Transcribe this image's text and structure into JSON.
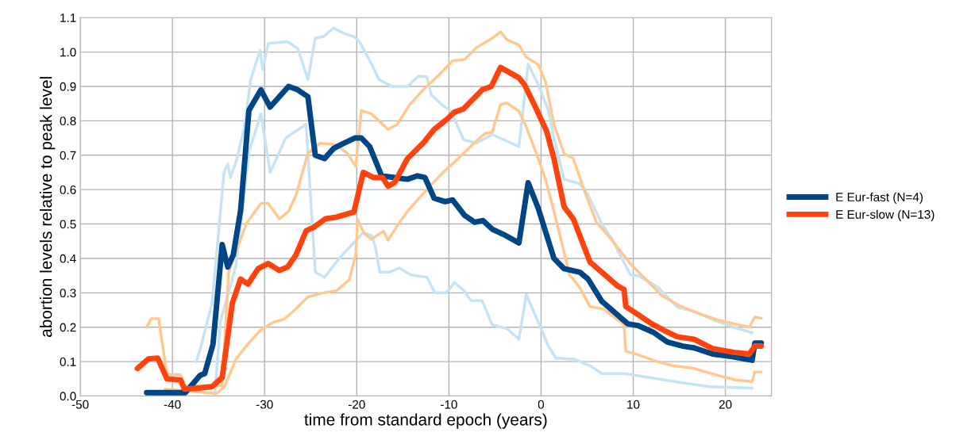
{
  "chart_data": {
    "type": "line",
    "xlabel": "time from standard epoch (years)",
    "ylabel": "abortion levels relative to peak level",
    "xlim": [
      -50,
      25
    ],
    "xticks": [
      -50,
      -40,
      -30,
      -20,
      -10,
      0,
      10,
      20
    ],
    "ylim": [
      0,
      1.1
    ],
    "yticks": [
      {
        "value": 0,
        "label": "0.0"
      },
      {
        "value": 0.1,
        "label": "0.1"
      },
      {
        "value": 0.2,
        "label": "0.2"
      },
      {
        "value": 0.3,
        "label": "0.3"
      },
      {
        "value": 0.4,
        "label": "0.4"
      },
      {
        "value": 0.5,
        "label": "0.5"
      },
      {
        "value": 0.6,
        "label": "0.6"
      },
      {
        "value": 0.7,
        "label": "0.7"
      },
      {
        "value": 0.8,
        "label": "0.8"
      },
      {
        "value": 0.9,
        "label": "0.9"
      },
      {
        "value": 1.0,
        "label": "1.0"
      },
      {
        "value": 1.1,
        "label": "1.1"
      }
    ],
    "grid": true,
    "legend": "right",
    "marker": "none",
    "line_style": "solid",
    "series": [
      {
        "color": "#c5e3f5",
        "x": [
          -37.4,
          -36.9,
          -35.7,
          -34.4,
          -34.0,
          -33.7,
          -33.0,
          -32.2,
          -31.5,
          -30.5,
          -30.2,
          -29.6,
          -27.5,
          -26.4,
          -25.3,
          -24.5,
          -23.6,
          -22.5,
          -21.5,
          -20.3,
          -19.7,
          -18.4,
          -17.6,
          -16.2,
          -14.5,
          -13.3,
          -12.4,
          -11.9,
          -10.7,
          -9.8,
          -8.4,
          -7.0,
          -5.3,
          -2.4,
          -1.4,
          -0.3,
          0.8,
          1.4,
          2.5,
          4.2,
          5.1,
          6.6,
          7.7,
          9.7,
          10.5,
          12.6,
          14.8,
          16.6,
          18.9,
          20.9,
          22.9
        ],
        "values": [
          0.1,
          0.145,
          0.27,
          0.65,
          0.675,
          0.635,
          0.69,
          0.78,
          0.92,
          1.005,
          0.95,
          1.025,
          1.03,
          1.01,
          0.92,
          1.04,
          1.045,
          1.07,
          1.055,
          1.045,
          1.03,
          0.965,
          0.92,
          0.9,
          0.9,
          0.93,
          0.928,
          0.875,
          0.845,
          0.83,
          0.745,
          0.735,
          0.76,
          0.725,
          0.965,
          0.905,
          0.83,
          0.75,
          0.63,
          0.617,
          0.585,
          0.5,
          0.456,
          0.352,
          0.35,
          0.318,
          0.258,
          0.246,
          0.219,
          0.2,
          0.184
        ]
      },
      {
        "color": "#c5e3f5",
        "x": [
          -35.4,
          -34.8,
          -33.1,
          -31.7,
          -30.4,
          -29.4,
          -27.7,
          -26.6,
          -25.5,
          -24.5,
          -23.5,
          -21.9,
          -19.3,
          -18.4,
          -18.0,
          -17.5,
          -16.5,
          -15.4,
          -14.1,
          -12.4,
          -11.5,
          -10.3,
          -9.4,
          -8.4,
          -7.6,
          -6.4,
          -5.3,
          -3.7,
          -2.4,
          -1.6,
          -0.3,
          0.8,
          1.6,
          3.6,
          5.3,
          6.6,
          9.1,
          12.6,
          15.4,
          18.3,
          22.9
        ],
        "values": [
          0.0,
          0.215,
          0.38,
          0.71,
          0.82,
          0.65,
          0.75,
          0.77,
          0.79,
          0.36,
          0.345,
          0.4,
          0.475,
          0.467,
          0.437,
          0.36,
          0.36,
          0.372,
          0.352,
          0.345,
          0.3,
          0.3,
          0.33,
          0.307,
          0.277,
          0.277,
          0.207,
          0.196,
          0.165,
          0.295,
          0.215,
          0.145,
          0.11,
          0.107,
          0.088,
          0.065,
          0.065,
          0.05,
          0.038,
          0.027,
          0.023
        ]
      },
      {
        "color": "#ffc88f",
        "x": [
          -42.8,
          -42.3,
          -41.5,
          -40.6,
          -39.1,
          -38.7,
          -35.2,
          -34.6,
          -33.9,
          -32.0,
          -30.4,
          -29.6,
          -28.4,
          -27.4,
          -26.6,
          -25.3,
          -24.0,
          -22.2,
          -21.0,
          -20.1,
          -19.5,
          -18.4,
          -17.6,
          -16.6,
          -15.6,
          -14.3,
          -12.8,
          -11.0,
          -9.6,
          -8.3,
          -7.0,
          -5.3,
          -4.4,
          -3.7,
          -2.4,
          -1.6,
          -0.3,
          0.5,
          1.4,
          2.5,
          3.5,
          4.8,
          6.0,
          7.7,
          9.7,
          11.4,
          13.1,
          15.2,
          16.9,
          18.9,
          20.6,
          22.6,
          23.2,
          23.9
        ],
        "values": [
          0.2,
          0.225,
          0.225,
          0.062,
          0.062,
          0.03,
          0.03,
          0.03,
          0.36,
          0.5,
          0.56,
          0.56,
          0.515,
          0.537,
          0.583,
          0.705,
          0.735,
          0.73,
          0.705,
          0.667,
          0.83,
          0.82,
          0.8,
          0.775,
          0.79,
          0.845,
          0.89,
          0.935,
          0.975,
          0.978,
          1.013,
          1.04,
          1.058,
          1.036,
          1.02,
          0.985,
          0.963,
          0.913,
          0.79,
          0.705,
          0.69,
          0.59,
          0.506,
          0.453,
          0.384,
          0.338,
          0.292,
          0.26,
          0.242,
          0.223,
          0.212,
          0.2,
          0.23,
          0.226
        ]
      },
      {
        "color": "#ffc88f",
        "x": [
          -40.8,
          -35.2,
          -34.3,
          -33.1,
          -31.7,
          -30.5,
          -29.1,
          -27.9,
          -26.6,
          -25.3,
          -23.6,
          -22.2,
          -20.8,
          -20.1,
          -19.9,
          -19.2,
          -18.4,
          -17.1,
          -16.6,
          -15.6,
          -14.5,
          -12.4,
          -10.6,
          -9.0,
          -7.2,
          -6.1,
          -5.3,
          -4.4,
          -3.7,
          -2.4,
          -1.6,
          -0.3,
          0.5,
          1.4,
          3.1,
          4.2,
          5.3,
          6.8,
          7.9,
          9.0,
          9.2,
          10.5,
          12.6,
          14.3,
          16.6,
          18.9,
          21.2,
          22.9,
          23.2,
          23.9
        ],
        "values": [
          0.02,
          0.007,
          0.03,
          0.108,
          0.154,
          0.19,
          0.214,
          0.223,
          0.253,
          0.288,
          0.3,
          0.306,
          0.338,
          0.414,
          0.513,
          0.472,
          0.456,
          0.479,
          0.453,
          0.495,
          0.537,
          0.6,
          0.651,
          0.69,
          0.737,
          0.763,
          0.767,
          0.847,
          0.852,
          0.828,
          0.782,
          0.69,
          0.628,
          0.537,
          0.352,
          0.315,
          0.26,
          0.253,
          0.23,
          0.207,
          0.13,
          0.12,
          0.1,
          0.088,
          0.08,
          0.062,
          0.046,
          0.042,
          0.07,
          0.07
        ]
      },
      {
        "name": "E Eur-fast (N=4)",
        "color": "#004586",
        "x": [
          -42.8,
          -38.6,
          -37.0,
          -36.5,
          -35.6,
          -34.6,
          -34.0,
          -33.4,
          -32.6,
          -31.7,
          -30.4,
          -29.4,
          -27.4,
          -26.4,
          -25.3,
          -24.5,
          -23.5,
          -22.5,
          -21.4,
          -20.2,
          -19.5,
          -18.6,
          -17.3,
          -15.9,
          -14.5,
          -13.4,
          -12.6,
          -11.6,
          -10.4,
          -9.6,
          -8.3,
          -7.2,
          -6.3,
          -5.3,
          -4.1,
          -2.4,
          -1.4,
          -0.3,
          1.4,
          2.5,
          4.2,
          5.1,
          6.6,
          7.7,
          9.4,
          10.5,
          12.2,
          13.7,
          15.4,
          16.6,
          18.6,
          20.6,
          22.9,
          23.2,
          23.9
        ],
        "values": [
          0.01,
          0.01,
          0.06,
          0.065,
          0.15,
          0.44,
          0.375,
          0.41,
          0.54,
          0.83,
          0.89,
          0.84,
          0.9,
          0.89,
          0.87,
          0.7,
          0.69,
          0.72,
          0.735,
          0.75,
          0.75,
          0.725,
          0.64,
          0.635,
          0.63,
          0.64,
          0.635,
          0.575,
          0.565,
          0.57,
          0.525,
          0.505,
          0.51,
          0.485,
          0.47,
          0.445,
          0.62,
          0.545,
          0.4,
          0.37,
          0.36,
          0.34,
          0.275,
          0.25,
          0.21,
          0.205,
          0.185,
          0.157,
          0.145,
          0.14,
          0.122,
          0.115,
          0.104,
          0.154,
          0.154
        ]
      },
      {
        "name": "E Eur-slow (N=13)",
        "color": "#ff420e",
        "x": [
          -43.8,
          -42.6,
          -41.6,
          -40.6,
          -39.1,
          -38.7,
          -37.2,
          -35.7,
          -34.6,
          -33.5,
          -32.6,
          -31.8,
          -30.7,
          -29.6,
          -28.4,
          -27.5,
          -26.6,
          -25.5,
          -24.7,
          -23.4,
          -22.2,
          -20.3,
          -19.3,
          -18.2,
          -17.2,
          -16.6,
          -15.9,
          -14.5,
          -12.8,
          -11.6,
          -10.2,
          -9.4,
          -8.4,
          -6.4,
          -5.4,
          -4.4,
          -2.4,
          -1.8,
          -0.7,
          0.6,
          1.4,
          2.5,
          3.5,
          5.3,
          6.6,
          8.3,
          9.0,
          9.2,
          10.5,
          12.0,
          13.4,
          14.8,
          16.6,
          18.6,
          20.9,
          22.6,
          23.2,
          23.9
        ],
        "values": [
          0.08,
          0.108,
          0.11,
          0.05,
          0.046,
          0.02,
          0.023,
          0.027,
          0.054,
          0.27,
          0.34,
          0.325,
          0.37,
          0.385,
          0.365,
          0.375,
          0.41,
          0.48,
          0.49,
          0.515,
          0.52,
          0.535,
          0.65,
          0.635,
          0.635,
          0.61,
          0.62,
          0.69,
          0.735,
          0.775,
          0.805,
          0.825,
          0.835,
          0.89,
          0.9,
          0.955,
          0.925,
          0.905,
          0.845,
          0.77,
          0.69,
          0.55,
          0.515,
          0.39,
          0.36,
          0.32,
          0.31,
          0.26,
          0.237,
          0.21,
          0.19,
          0.172,
          0.165,
          0.138,
          0.127,
          0.122,
          0.145,
          0.145
        ]
      }
    ]
  }
}
